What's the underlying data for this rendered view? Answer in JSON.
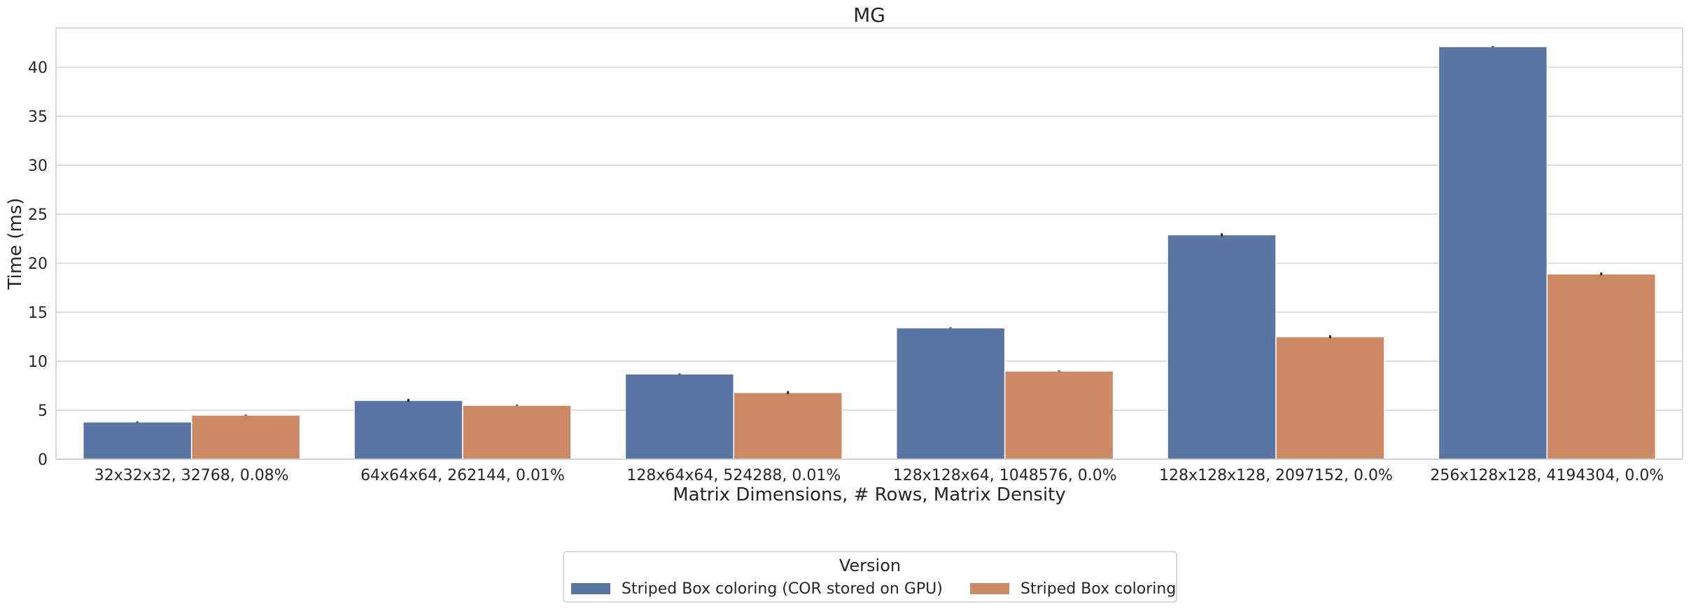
{
  "chart_data": {
    "type": "bar",
    "title": "MG",
    "xlabel": "Matrix Dimensions, # Rows, Matrix Density",
    "ylabel": "Time (ms)",
    "ylim": [
      0,
      44
    ],
    "yticks": [
      0,
      5,
      10,
      15,
      20,
      25,
      30,
      35,
      40
    ],
    "grid": "horizontal",
    "categories": [
      "32x32x32, 32768, 0.08%",
      "64x64x64, 262144, 0.01%",
      "128x64x64, 524288, 0.01%",
      "128x128x64, 1048576, 0.0%",
      "128x128x128, 2097152, 0.0%",
      "256x128x128, 4194304, 0.0%"
    ],
    "series": [
      {
        "name": "Striped Box coloring (COR stored on GPU)",
        "color": "#5875a4",
        "values": [
          3.8,
          6.0,
          8.7,
          13.4,
          22.9,
          42.1
        ],
        "error": [
          0.05,
          0.15,
          0.05,
          0.05,
          0.15,
          0.05
        ]
      },
      {
        "name": "Striped Box coloring",
        "color": "#cc8963",
        "values": [
          4.5,
          5.5,
          6.8,
          9.0,
          12.5,
          18.9
        ],
        "error": [
          0.05,
          0.05,
          0.15,
          0.05,
          0.15,
          0.15
        ]
      }
    ],
    "legend": {
      "title": "Version",
      "position": "bottom-center"
    }
  }
}
